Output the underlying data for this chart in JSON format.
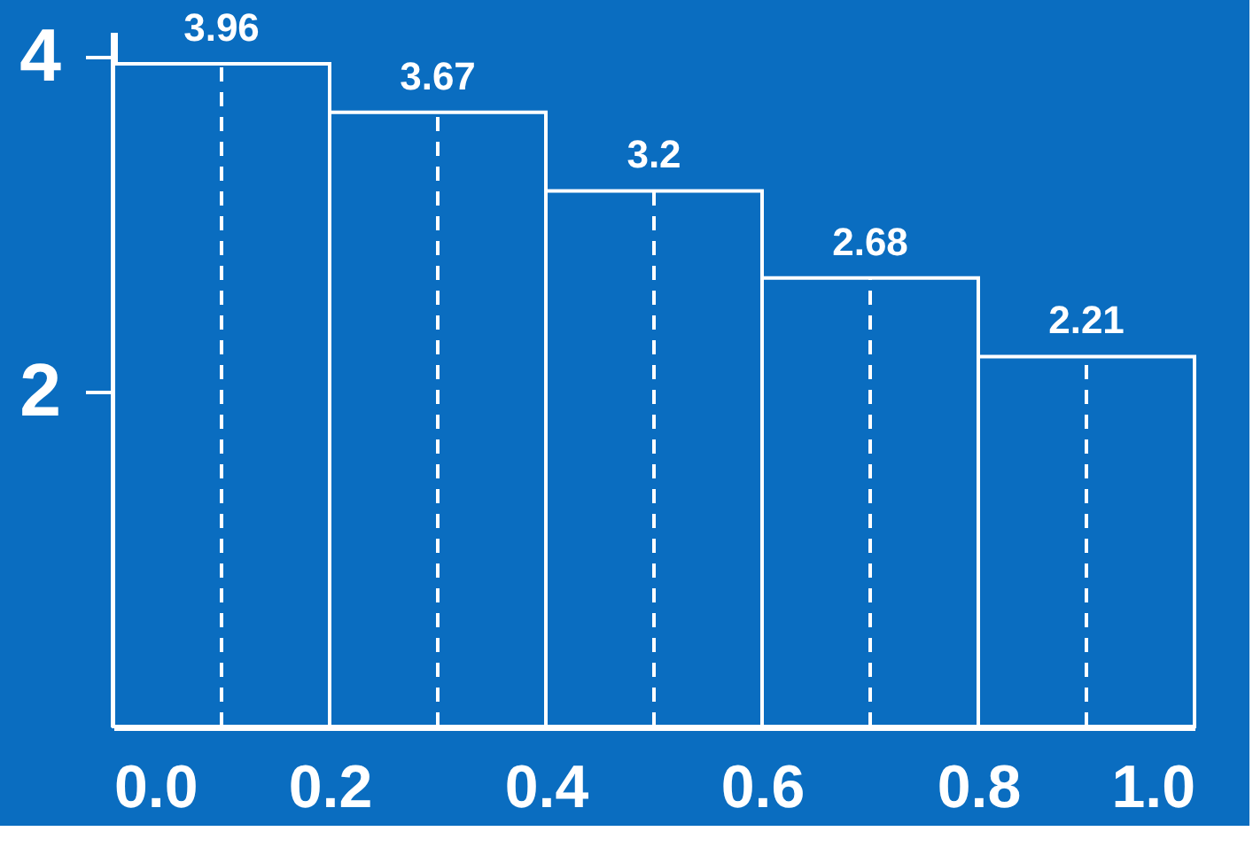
{
  "chart_data": {
    "type": "histogram",
    "bins": [
      0.0,
      0.2,
      0.4,
      0.6,
      0.8,
      1.0
    ],
    "values": [
      3.96,
      3.67,
      3.2,
      2.68,
      2.21
    ],
    "color": "#0a6dc0",
    "data_labels": true,
    "xlim": [
      0.0,
      1.0
    ],
    "xticks": [
      {
        "value": 0,
        "label": "0.0"
      },
      {
        "value": 0.2,
        "label": "0.2"
      },
      {
        "value": 0.4,
        "label": "0.4"
      },
      {
        "value": 0.6,
        "label": "0.6"
      },
      {
        "value": 0.8,
        "label": "0.8"
      },
      {
        "value": 1,
        "label": "1.0"
      }
    ],
    "ylim": [
      0,
      4.15
    ],
    "yticks": [
      2,
      4
    ],
    "grid": false,
    "ref_lines": [
      {
        "axis": "x",
        "value": 0.1,
        "color": "#ffffff",
        "line_style": "dashed"
      },
      {
        "axis": "x",
        "value": 0.3,
        "color": "#ffffff",
        "line_style": "dashed"
      },
      {
        "axis": "x",
        "value": 0.5,
        "color": "#ffffff",
        "line_style": "dashed"
      },
      {
        "axis": "x",
        "value": 0.7,
        "color": "#ffffff",
        "line_style": "dashed"
      },
      {
        "axis": "x",
        "value": 0.9,
        "color": "#ffffff",
        "line_style": "dashed"
      }
    ]
  }
}
